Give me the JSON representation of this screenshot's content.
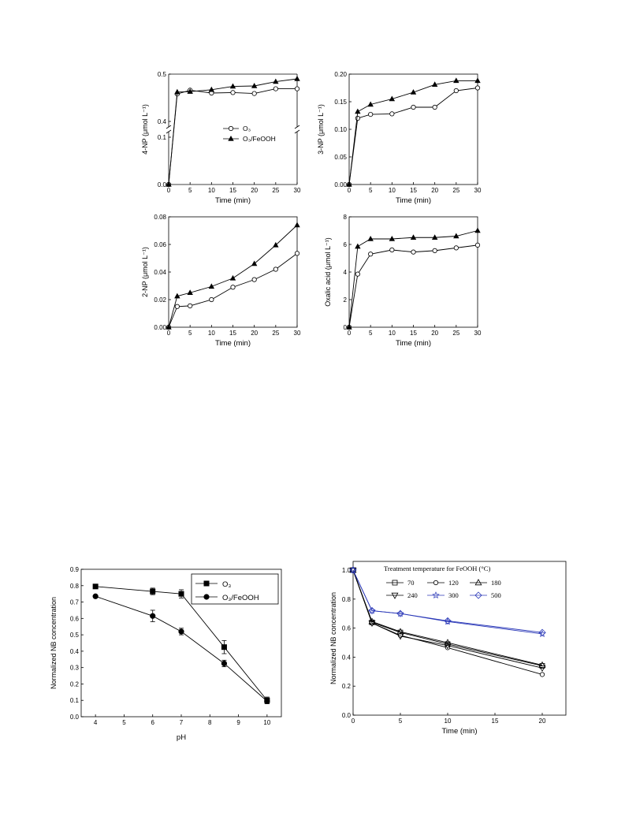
{
  "page_title": "",
  "colors": {
    "black": "#000000",
    "blue": "#2b39b8",
    "gray": "#555555"
  },
  "chart_data": [
    {
      "id": "4np",
      "type": "line",
      "xlabel": "Time (min)",
      "ylabel": "4-NP (μmol L⁻¹)",
      "axis_break": true,
      "x_ticks": [
        "0",
        "5",
        "10",
        "15",
        "20",
        "25",
        "30"
      ],
      "y_ticks_lower": [
        "0.0",
        "0.1"
      ],
      "y_ticks_upper": [
        "0.4",
        "0.5"
      ],
      "xlim": [
        0,
        30
      ],
      "ylim_lower": [
        0,
        0.11
      ],
      "ylim_upper": [
        0.39,
        0.5
      ],
      "legend": [
        {
          "label": "O₃",
          "marker": "open-circle"
        },
        {
          "label": "O₃/FeOOH",
          "marker": "filled-triangle"
        }
      ],
      "series": [
        {
          "name": "O₃",
          "marker": "open-circle",
          "x": [
            0,
            2,
            5,
            10,
            15,
            20,
            25,
            30
          ],
          "y": [
            0,
            0.458,
            0.466,
            0.46,
            0.461,
            0.459,
            0.469,
            0.469
          ]
        },
        {
          "name": "O₃/FeOOH",
          "marker": "filled-triangle",
          "x": [
            0,
            2,
            5,
            10,
            15,
            20,
            25,
            30
          ],
          "y": [
            0,
            0.462,
            0.463,
            0.467,
            0.474,
            0.475,
            0.484,
            0.49
          ]
        }
      ]
    },
    {
      "id": "3np",
      "type": "line",
      "xlabel": "Time (min)",
      "ylabel": "3-NP (μmol L⁻¹)",
      "x_ticks": [
        "0",
        "5",
        "10",
        "15",
        "20",
        "25",
        "30"
      ],
      "y_ticks": [
        "0.00",
        "0.05",
        "0.10",
        "0.15",
        "0.20"
      ],
      "xlim": [
        0,
        30
      ],
      "ylim": [
        0,
        0.2
      ],
      "series": [
        {
          "marker": "open-circle",
          "x": [
            0,
            2,
            5,
            10,
            15,
            20,
            25,
            30
          ],
          "y": [
            0,
            0.12,
            0.127,
            0.128,
            0.14,
            0.14,
            0.17,
            0.175
          ]
        },
        {
          "marker": "filled-triangle",
          "x": [
            0,
            2,
            5,
            10,
            15,
            20,
            25,
            30
          ],
          "y": [
            0,
            0.132,
            0.145,
            0.155,
            0.167,
            0.181,
            0.188,
            0.188
          ]
        }
      ]
    },
    {
      "id": "2np",
      "type": "line",
      "xlabel": "Time (min)",
      "ylabel": "2-NP (μmol L⁻¹)",
      "x_ticks": [
        "0",
        "5",
        "10",
        "15",
        "20",
        "25",
        "30"
      ],
      "y_ticks": [
        "0.00",
        "0.02",
        "0.04",
        "0.06",
        "0.08"
      ],
      "xlim": [
        0,
        30
      ],
      "ylim": [
        0,
        0.08
      ],
      "series": [
        {
          "marker": "open-circle",
          "x": [
            0,
            2,
            5,
            10,
            15,
            20,
            25,
            30
          ],
          "y": [
            0,
            0.015,
            0.0155,
            0.02,
            0.029,
            0.0345,
            0.042,
            0.0535
          ]
        },
        {
          "marker": "filled-triangle",
          "x": [
            0,
            2,
            5,
            10,
            15,
            20,
            25,
            30
          ],
          "y": [
            0,
            0.0225,
            0.025,
            0.0295,
            0.0355,
            0.046,
            0.0595,
            0.074
          ]
        }
      ]
    },
    {
      "id": "oxalic",
      "type": "line",
      "xlabel": "Time (min)",
      "ylabel": "Oxalic acid (μmol L⁻¹)",
      "x_ticks": [
        "0",
        "5",
        "10",
        "15",
        "20",
        "25",
        "30"
      ],
      "y_ticks": [
        "0",
        "2",
        "4",
        "6",
        "8"
      ],
      "xlim": [
        0,
        30
      ],
      "ylim": [
        0,
        8
      ],
      "series": [
        {
          "marker": "open-circle",
          "x": [
            0,
            2,
            5,
            10,
            15,
            20,
            25,
            30
          ],
          "y": [
            0,
            3.85,
            5.3,
            5.6,
            5.45,
            5.55,
            5.75,
            5.95
          ]
        },
        {
          "marker": "filled-triangle",
          "x": [
            0,
            2,
            5,
            10,
            15,
            20,
            25,
            30
          ],
          "y": [
            0,
            5.85,
            6.4,
            6.4,
            6.5,
            6.5,
            6.6,
            7.0
          ]
        }
      ]
    },
    {
      "id": "ph",
      "type": "line",
      "xlabel": "pH",
      "ylabel": "Normalized NB concentration",
      "x_ticks": [
        "4",
        "5",
        "6",
        "7",
        "8",
        "9",
        "10"
      ],
      "y_ticks": [
        "0.0",
        "0.1",
        "0.2",
        "0.3",
        "0.4",
        "0.5",
        "0.6",
        "0.7",
        "0.8",
        "0.9"
      ],
      "xlim": [
        3.5,
        10.5
      ],
      "ylim": [
        0,
        0.9
      ],
      "legend": [
        {
          "label": "O₃",
          "marker": "filled-square"
        },
        {
          "label": "O₃/FeOOH",
          "marker": "filled-circle"
        }
      ],
      "series": [
        {
          "name": "O₃",
          "marker": "filled-square",
          "x": [
            4,
            6,
            7,
            8.5,
            10
          ],
          "y": [
            0.795,
            0.765,
            0.75,
            0.425,
            0.1
          ],
          "err": [
            0.005,
            0.02,
            0.025,
            0.04,
            0.02
          ]
        },
        {
          "name": "O₃/FeOOH",
          "marker": "filled-circle",
          "x": [
            4,
            6,
            7,
            8.5,
            10
          ],
          "y": [
            0.735,
            0.615,
            0.52,
            0.325,
            0.095
          ],
          "err": [
            0.005,
            0.035,
            0.02,
            0.02,
            0.015
          ]
        }
      ]
    },
    {
      "id": "temp",
      "type": "line",
      "legend_title": "Treatment temperature for FeOOH (°C)",
      "xlabel": "Time (min)",
      "ylabel": "Normalized NB concentration",
      "x_ticks": [
        "0",
        "5",
        "10",
        "15",
        "20"
      ],
      "y_ticks": [
        "0.0",
        "0.2",
        "0.4",
        "0.6",
        "0.8",
        "1.0"
      ],
      "xlim": [
        0,
        22.5
      ],
      "ylim": [
        0,
        1.06
      ],
      "legend": [
        {
          "label": "70",
          "marker": "open-square"
        },
        {
          "label": "120",
          "marker": "open-circle"
        },
        {
          "label": "180",
          "marker": "open-triangle-up"
        },
        {
          "label": "240",
          "marker": "open-triangle-down"
        },
        {
          "label": "300",
          "marker": "star"
        },
        {
          "label": "500",
          "marker": "open-diamond"
        }
      ],
      "series": [
        {
          "name": "70",
          "marker": "open-square",
          "color": "#000000",
          "x": [
            0,
            2,
            5,
            10,
            20
          ],
          "y": [
            1.0,
            0.64,
            0.57,
            0.49,
            0.34
          ]
        },
        {
          "name": "120",
          "marker": "open-circle",
          "color": "#000000",
          "x": [
            0,
            2,
            5,
            10,
            20
          ],
          "y": [
            1.0,
            0.635,
            0.55,
            0.465,
            0.28
          ]
        },
        {
          "name": "180",
          "marker": "open-triangle-up",
          "color": "#000000",
          "x": [
            0,
            2,
            5,
            10,
            20
          ],
          "y": [
            1.0,
            0.645,
            0.575,
            0.5,
            0.345
          ]
        },
        {
          "name": "240",
          "marker": "open-triangle-down",
          "color": "#000000",
          "x": [
            0,
            2,
            5,
            10,
            20
          ],
          "y": [
            1.0,
            0.635,
            0.545,
            0.48,
            0.325
          ]
        },
        {
          "name": "300",
          "marker": "star",
          "color": "#2b39b8",
          "x": [
            0,
            2,
            5,
            10,
            20
          ],
          "y": [
            1.0,
            0.72,
            0.7,
            0.645,
            0.56
          ]
        },
        {
          "name": "500",
          "marker": "open-diamond",
          "color": "#2b39b8",
          "x": [
            0,
            2,
            5,
            10,
            20
          ],
          "y": [
            1.0,
            0.72,
            0.7,
            0.65,
            0.57
          ]
        }
      ]
    }
  ]
}
